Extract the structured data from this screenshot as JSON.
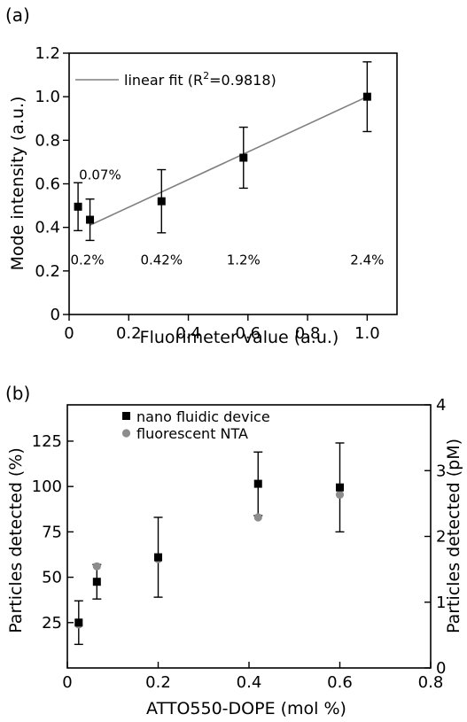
{
  "chart_data": [
    {
      "panel": "(a)",
      "type": "scatter",
      "xlabel": "Fluorimeter value (a.u.)",
      "ylabel": "Mode intensity (a.u.)",
      "xlim": [
        0,
        1.1
      ],
      "ylim": [
        0,
        1.2
      ],
      "xticks": [
        "0",
        "0.2",
        "0.4",
        "0.6",
        "0.8",
        "1.0"
      ],
      "yticks": [
        "0",
        "0.2",
        "0.4",
        "0.6",
        "0.8",
        "1.0",
        "1.2"
      ],
      "points": [
        {
          "x": 0.03,
          "y": 0.495,
          "err": 0.11,
          "label": "0.07%"
        },
        {
          "x": 0.07,
          "y": 0.435,
          "err": 0.095,
          "label": "0.2%"
        },
        {
          "x": 0.31,
          "y": 0.52,
          "err": 0.145,
          "label": "0.42%"
        },
        {
          "x": 0.585,
          "y": 0.72,
          "err": 0.14,
          "label": "1.2%"
        },
        {
          "x": 1.0,
          "y": 1.0,
          "err": 0.16,
          "label": "2.4%"
        }
      ],
      "fit": {
        "x": [
          0.07,
          1.0
        ],
        "y": [
          0.41,
          1.0
        ],
        "legend_prefix": "linear fit (R",
        "legend_sup": "2",
        "legend_suffix": "=0.9818)"
      },
      "colors": {
        "points": "#000000",
        "fit": "#808080"
      }
    },
    {
      "panel": "(b)",
      "type": "scatter",
      "xlabel": "ATTO550-DOPE (mol %)",
      "ylabel": "Particles detected (%)",
      "ylabel_right": "Particles detected (pM)",
      "xlim": [
        0,
        0.8
      ],
      "ylim": [
        0,
        145
      ],
      "ylim_right": [
        0,
        4
      ],
      "xticks": [
        "0",
        "0.2",
        "0.4",
        "0.6",
        "0.8"
      ],
      "yticks": [
        "25",
        "50",
        "75",
        "100",
        "125"
      ],
      "yticks_right": [
        "0",
        "1",
        "2",
        "3",
        "4"
      ],
      "series": [
        {
          "name": "nano fluidic device",
          "marker": "square",
          "color": "#000000",
          "x": [
            0.025,
            0.065,
            0.2,
            0.42,
            0.6
          ],
          "y": [
            25,
            47.5,
            61,
            101.5,
            99.5
          ],
          "err": [
            12,
            9.5,
            22,
            17.5,
            24.5
          ]
        },
        {
          "name": "fluorescent NTA",
          "marker": "circle",
          "color": "#8c8c8c",
          "x": [
            0.025,
            0.065,
            0.2,
            0.42,
            0.6
          ],
          "y": [
            24,
            56,
            60,
            83,
            95.5
          ]
        }
      ]
    }
  ]
}
